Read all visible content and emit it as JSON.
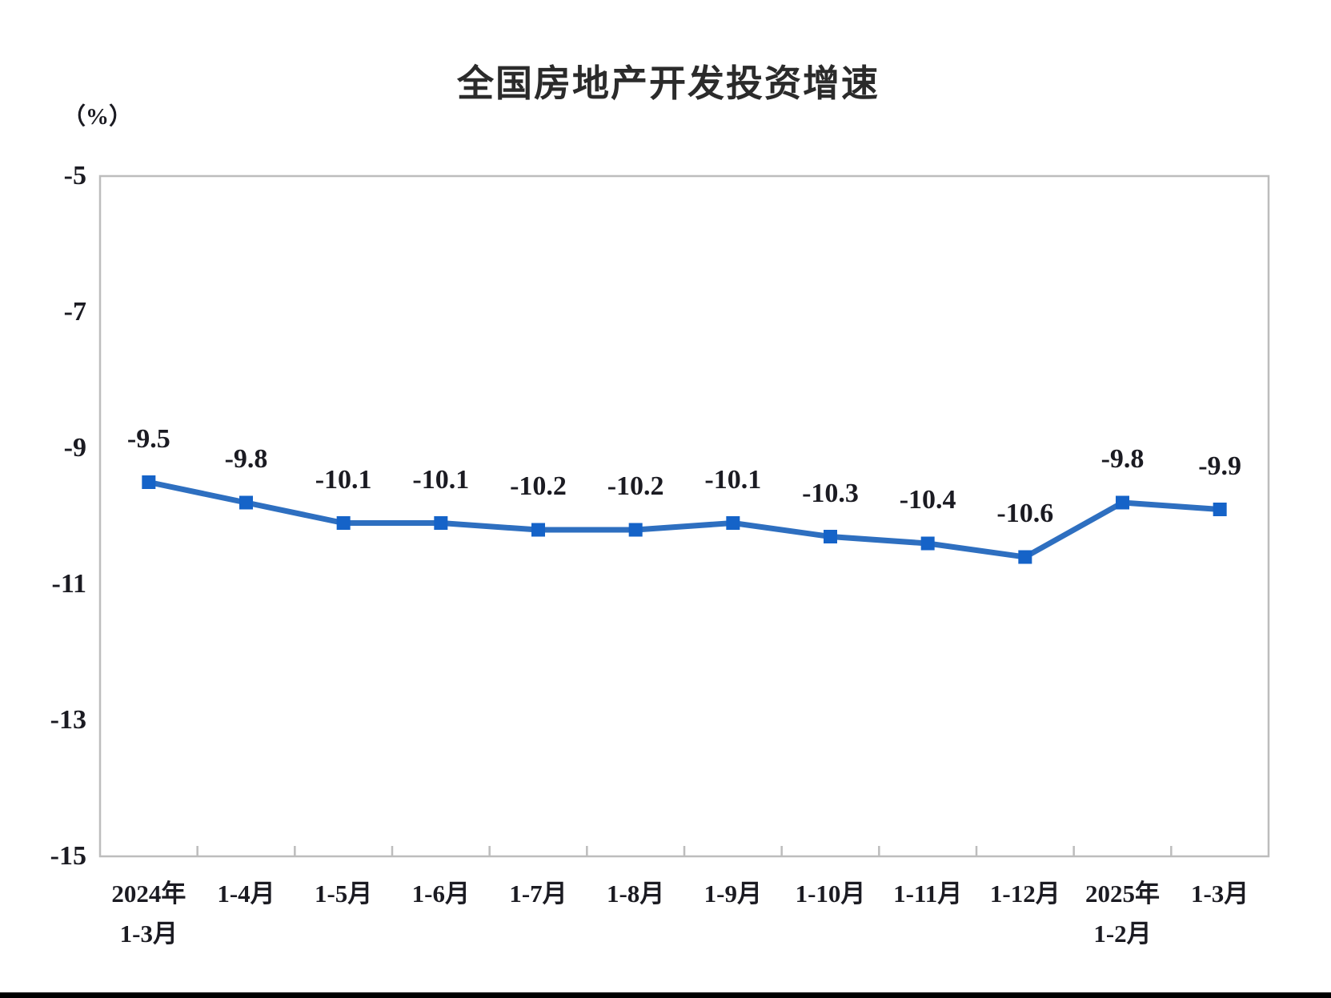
{
  "page": {
    "background": "#ffffff",
    "bottom_bar_color": "#000000"
  },
  "chart_data": {
    "type": "line",
    "title": "全国房地产开发投资增速",
    "unit_label": "（%）",
    "categories": [
      [
        "2024年",
        "1-3月"
      ],
      [
        "1-4月"
      ],
      [
        "1-5月"
      ],
      [
        "1-6月"
      ],
      [
        "1-7月"
      ],
      [
        "1-8月"
      ],
      [
        "1-9月"
      ],
      [
        "1-10月"
      ],
      [
        "1-11月"
      ],
      [
        "1-12月"
      ],
      [
        "2025年",
        "1-2月"
      ],
      [
        "1-3月"
      ]
    ],
    "values": [
      -9.5,
      -9.8,
      -10.1,
      -10.1,
      -10.2,
      -10.2,
      -10.1,
      -10.3,
      -10.4,
      -10.6,
      -9.8,
      -9.9
    ],
    "data_labels": [
      "-9.5",
      "-9.8",
      "-10.1",
      "-10.1",
      "-10.2",
      "-10.2",
      "-10.1",
      "-10.3",
      "-10.4",
      "-10.6",
      "-9.8",
      "-9.9"
    ],
    "y_tick_labels": [
      "-5",
      "-7",
      "-9",
      "-11",
      "-13",
      "-15"
    ],
    "y_tick_values": [
      -5,
      -7,
      -9,
      -11,
      -13,
      -15
    ],
    "ylim": [
      -15,
      -5
    ],
    "xlabel": "",
    "ylabel": "（%）",
    "grid": "off",
    "legend": "none",
    "line_color": "#2e6fc0",
    "marker_color": "#1563c8",
    "marker_shape": "square",
    "axis_color": "#bdbdbd",
    "text_color": "#1b1b22"
  }
}
